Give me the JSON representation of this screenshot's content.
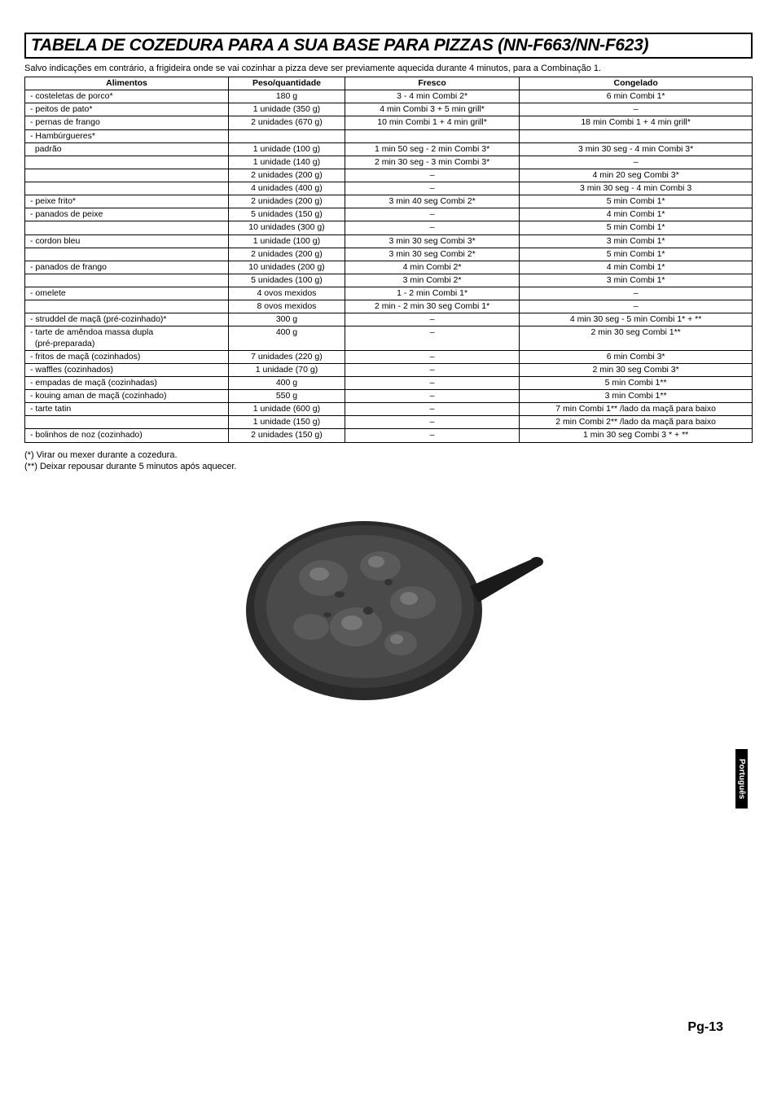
{
  "title": "TABELA DE COZEDURA PARA A SUA BASE PARA PIZZAS (NN-F663/NN-F623)",
  "subtitle": "Salvo indicações em contrário, a frigideira onde se vai cozinhar a pizza deve ser previamente aquecida durante 4 minutos, para a Combinação 1.",
  "headers": {
    "col1": "Alimentos",
    "col2": "Peso/quantidade",
    "col3": "Fresco",
    "col4": "Congelado"
  },
  "rows": [
    {
      "c1": "- costeletas de porco*",
      "c2": "180 g",
      "c3": "3 - 4 min Combi 2*",
      "c4": "6 min Combi 1*"
    },
    {
      "c1": "- peitos de pato*",
      "c2": "1 unidade (350 g)",
      "c3": "4 min Combi 3 + 5 min grill*",
      "c4": "–"
    },
    {
      "c1": "- pernas de frango",
      "c2": "2 unidades (670 g)",
      "c3": "10 min Combi 1 + 4 min grill*",
      "c4": "18 min Combi 1 + 4 min grill*"
    },
    {
      "c1": "- Hambúrgueres*",
      "c2": "",
      "c3": "",
      "c4": ""
    },
    {
      "c1": "  padrão",
      "c2": "1 unidade (100 g)",
      "c3": "1 min 50 seg - 2 min Combi 3*",
      "c4": "3 min 30 seg - 4 min Combi 3*"
    },
    {
      "c1": "",
      "c2": "1 unidade (140 g)",
      "c3": "2 min 30 seg - 3 min Combi 3*",
      "c4": "–"
    },
    {
      "c1": "",
      "c2": "2 unidades (200 g)",
      "c3": "–",
      "c4": "4 min 20 seg Combi 3*"
    },
    {
      "c1": "",
      "c2": "4 unidades (400 g)",
      "c3": "–",
      "c4": "3 min 30 seg - 4 min Combi 3"
    },
    {
      "c1": "- peixe frito*",
      "c2": "2 unidades (200 g)",
      "c3": "3 min 40 seg Combi 2*",
      "c4": "5 min Combi 1*"
    },
    {
      "c1": "- panados de peixe",
      "c2": "5 unidades (150 g)",
      "c3": "–",
      "c4": "4 min Combi 1*"
    },
    {
      "c1": "",
      "c2": "10 unidades (300 g)",
      "c3": "–",
      "c4": "5 min Combi 1*"
    },
    {
      "c1": "- cordon bleu",
      "c2": "1 unidade (100 g)",
      "c3": "3 min 30 seg Combi 3*",
      "c4": "3 min Combi 1*"
    },
    {
      "c1": "",
      "c2": "2 unidades (200 g)",
      "c3": "3 min 30 seg Combi 2*",
      "c4": "5 min Combi 1*"
    },
    {
      "c1": "- panados de frango",
      "c2": "10 unidades (200 g)",
      "c3": "4 min Combi 2*",
      "c4": "4 min Combi 1*"
    },
    {
      "c1": "",
      "c2": "5 unidades (100 g)",
      "c3": "3 min Combi 2*",
      "c4": "3 min Combi 1*"
    },
    {
      "c1": "- omelete",
      "c2": "4 ovos mexidos",
      "c3": "1 - 2 min Combi 1*",
      "c4": "–"
    },
    {
      "c1": "",
      "c2": "8 ovos mexidos",
      "c3": "2 min - 2 min 30 seg Combi 1*",
      "c4": "–"
    },
    {
      "c1": "- struddel de maçã (pré-cozinhado)*",
      "c2": "300 g",
      "c3": "–",
      "c4": "4 min 30 seg - 5 min Combi 1* + **"
    },
    {
      "c1": "- tarte de amêndoa massa dupla\n  (pré-preparada)",
      "c2": "400 g",
      "c3": "–",
      "c4": "2 min 30 seg Combi 1**"
    },
    {
      "c1": "- fritos de maçã (cozinhados)",
      "c2": "7 unidades (220 g)",
      "c3": "–",
      "c4": "6 min Combi 3*"
    },
    {
      "c1": "- waffles (cozinhados)",
      "c2": "1 unidade (70 g)",
      "c3": "–",
      "c4": "2 min 30 seg Combi 3*"
    },
    {
      "c1": "- empadas de maçã (cozinhadas)",
      "c2": "400 g",
      "c3": "–",
      "c4": "5 min Combi 1**"
    },
    {
      "c1": "- kouing aman de maçã (cozinhado)",
      "c2": "550 g",
      "c3": "–",
      "c4": "3 min Combi 1**"
    },
    {
      "c1": "- tarte tatin",
      "c2": "1 unidade (600 g)",
      "c3": "–",
      "c4": "7 min Combi 1** /lado da maçã para baixo"
    },
    {
      "c1": "",
      "c2": "1 unidade (150 g)",
      "c3": "–",
      "c4": "2 min Combi 2** /lado da maçã para baixo"
    },
    {
      "c1": "- bolinhos de noz (cozinhado)",
      "c2": "2 unidades (150 g)",
      "c3": "–",
      "c4": "1 min 30 seg Combi 3 * + **"
    }
  ],
  "notes": {
    "n1": "(*) Virar ou mexer durante a cozedura.",
    "n2": "(**) Deixar repousar durante 5 minutos após aquecer."
  },
  "side_tab": "Português",
  "page_number": "Pg-13",
  "image": {
    "alt": "pizza-pan-illustration",
    "pan_fill": "#2a2a2a",
    "pan_highlight": "#555",
    "handle_fill": "#1a1a1a",
    "food_base": "#4a4a4a",
    "food_light": "#777"
  },
  "colors": {
    "border": "#000000",
    "text": "#000000",
    "background": "#ffffff",
    "tab_bg": "#000000",
    "tab_text": "#ffffff"
  }
}
